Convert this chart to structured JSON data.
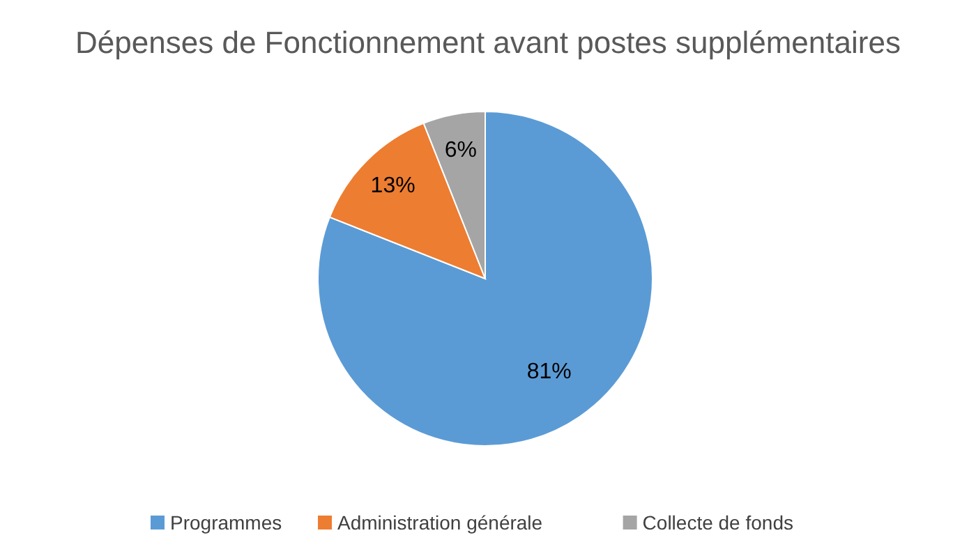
{
  "chart_data": {
    "type": "pie",
    "title": "Dépenses de Fonctionnement avant postes supplémentaires",
    "categories": [
      "Programmes",
      "Administration générale",
      "Collecte de fonds"
    ],
    "values": [
      81,
      13,
      6
    ],
    "colors": [
      "#5b9bd5",
      "#ed7d31",
      "#a5a5a5"
    ],
    "value_labels": [
      "81%",
      "13%",
      "6%"
    ],
    "legend": "bottom"
  }
}
